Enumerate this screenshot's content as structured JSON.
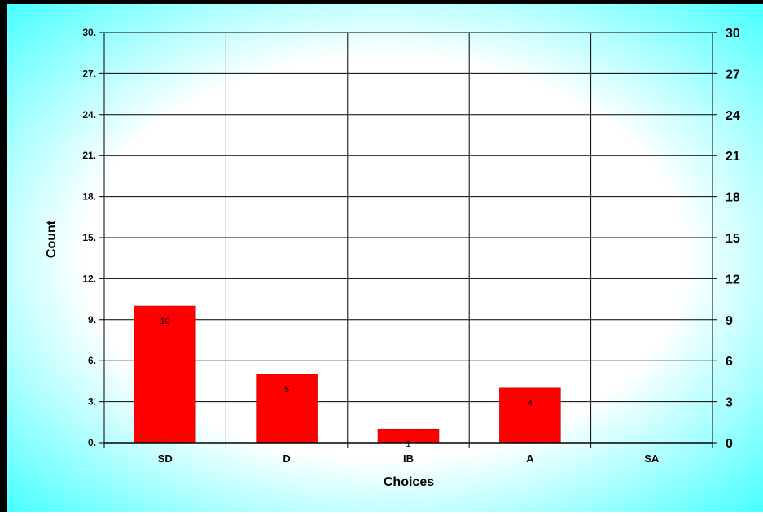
{
  "chart_data": {
    "type": "bar",
    "xlabel": "Choices",
    "ylabel": "Count",
    "categories": [
      "SD",
      "D",
      "IB",
      "A",
      "SA"
    ],
    "values": [
      10,
      5,
      1,
      4,
      0
    ],
    "data_labels": [
      "10",
      "5",
      "1",
      "4",
      ""
    ],
    "ylim": [
      0,
      30
    ],
    "left_ticks": [
      "0.",
      "3.",
      "6.",
      "9.",
      "12.",
      "15.",
      "18.",
      "21.",
      "24.",
      "27.",
      "30."
    ],
    "right_ticks": [
      "0",
      "3",
      "6",
      "9",
      "12",
      "15",
      "18",
      "21",
      "24",
      "27",
      "30"
    ],
    "grid": true,
    "colors": {
      "bar": "#ff0000",
      "bar_stroke": "#b30000",
      "frame": "#000000",
      "glow_outer": "#40ffff",
      "glow_inner": "#ffffff"
    }
  }
}
